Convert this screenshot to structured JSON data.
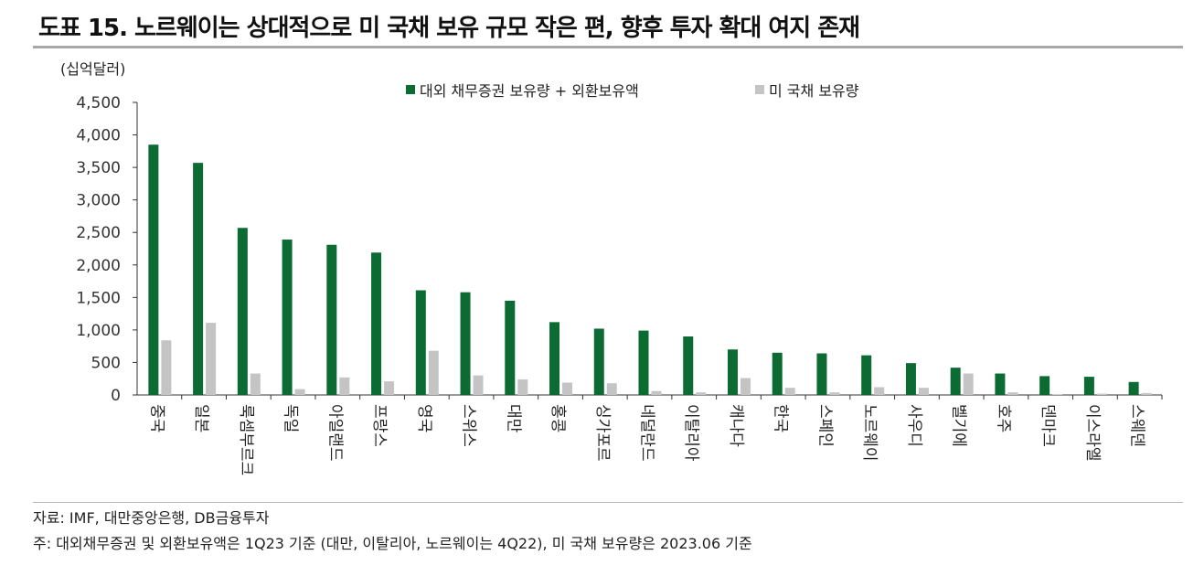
{
  "title": "도표 15. 노르웨이는 상대적으로 미 국채 보유 규모 작은 편, 향후 투자 확대 여지 존재",
  "unit": "(십억달러)",
  "source": "자료: IMF, 대만중앙은행, DB금융투자",
  "note": "주: 대외채무증권 및 외환보유액은 1Q23 기준 (대만, 이탈리아, 노르웨이는 4Q22), 미 국채 보유량은 2023.06 기준",
  "colors": {
    "series1": "#0b6b32",
    "series2": "#c4c4c4"
  },
  "chart_data": {
    "type": "bar",
    "categories": [
      "중국",
      "일본",
      "룩셈부르크",
      "독일",
      "아일랜드",
      "프랑스",
      "영국",
      "스위스",
      "대만",
      "홍콩",
      "싱가포르",
      "네덜란드",
      "이탈리아",
      "캐나다",
      "한국",
      "스페인",
      "노르웨이",
      "사우디",
      "벨기에",
      "호주",
      "덴마크",
      "이스라엘",
      "스웨덴"
    ],
    "series": [
      {
        "name": "대외 채무증권 보유량 + 외환보유액",
        "values": [
          3850,
          3570,
          2570,
          2390,
          2310,
          2190,
          1610,
          1580,
          1450,
          1120,
          1020,
          990,
          900,
          700,
          650,
          640,
          610,
          490,
          420,
          330,
          290,
          280,
          200
        ]
      },
      {
        "name": "미 국채 보유량",
        "values": [
          840,
          1110,
          330,
          90,
          270,
          210,
          680,
          300,
          240,
          190,
          180,
          60,
          40,
          260,
          110,
          40,
          120,
          110,
          330,
          40,
          5,
          20,
          30
        ]
      }
    ],
    "yticks": [
      "0",
      "500",
      "1,000",
      "1,500",
      "2,000",
      "2,500",
      "3,000",
      "3,500",
      "4,000",
      "4,500"
    ],
    "ylim": [
      0,
      4500
    ]
  }
}
